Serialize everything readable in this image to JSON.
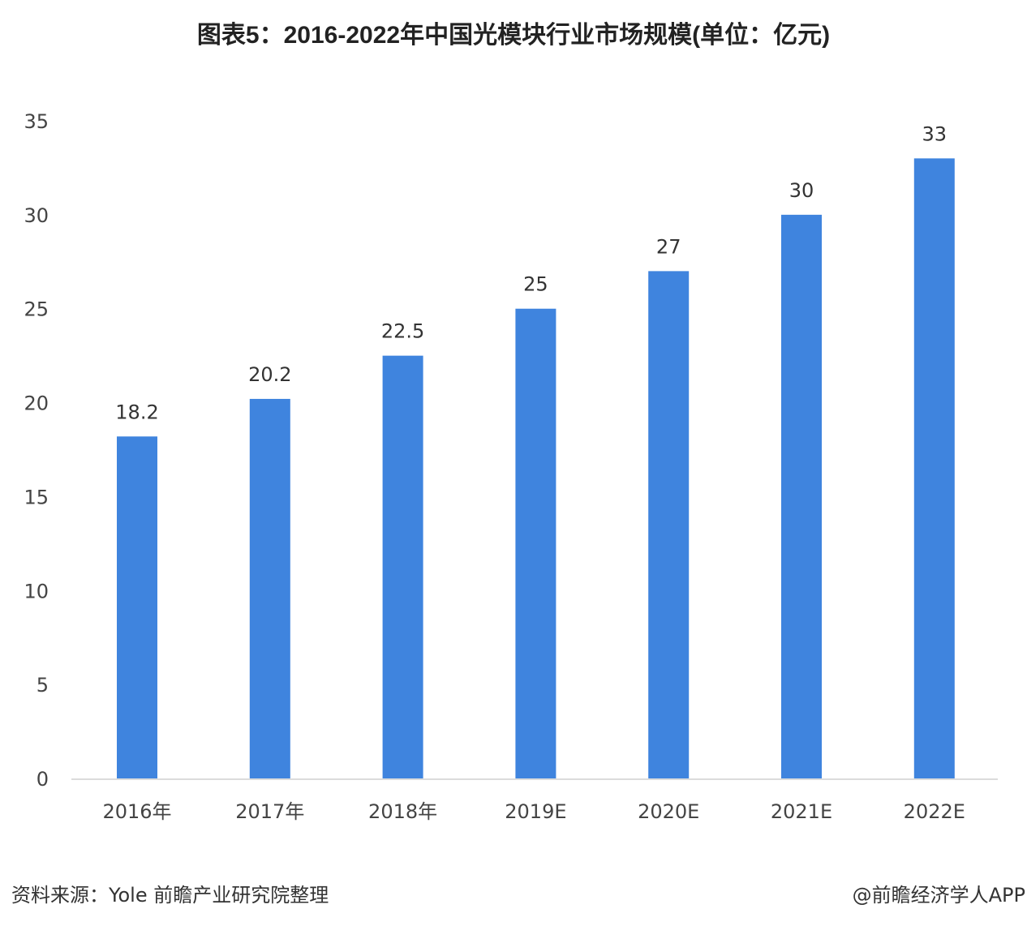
{
  "chart_data": {
    "type": "bar",
    "title": "图表5：2016-2022年中国光模块行业市场规模(单位：亿元)",
    "categories": [
      "2016年",
      "2017年",
      "2018年",
      "2019E",
      "2020E",
      "2021E",
      "2022E"
    ],
    "values": [
      18.2,
      20.2,
      22.5,
      25,
      27,
      30,
      33
    ],
    "data_labels": [
      "18.2",
      "20.2",
      "22.5",
      "25",
      "27",
      "30",
      "33"
    ],
    "ylim": [
      0,
      35
    ],
    "yticks": [
      "0",
      "5",
      "10",
      "15",
      "20",
      "25",
      "30",
      "35"
    ],
    "xlabel": "",
    "ylabel": "",
    "grid": false,
    "bar_color": "#3f84de"
  },
  "footer": {
    "source": "资料来源：Yole 前瞻产业研究院整理",
    "credit": "@前瞻经济学人APP"
  }
}
